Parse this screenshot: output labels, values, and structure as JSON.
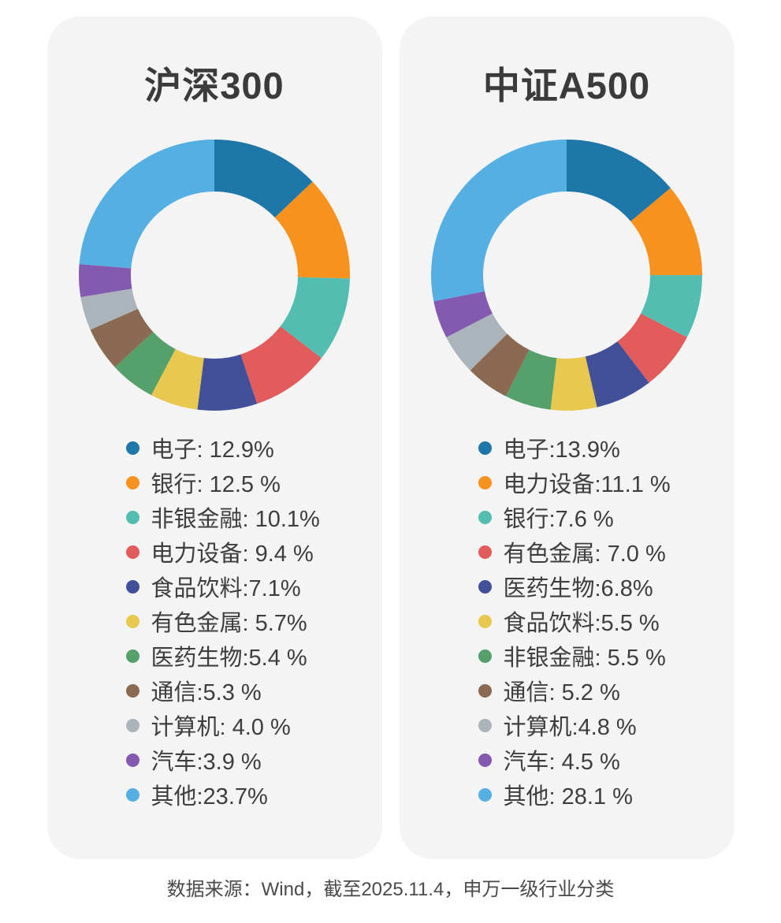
{
  "page": {
    "background": "#ffffff",
    "card_background": "#f4f4f5",
    "footer": "数据来源：Wind，截至2025.11.4，申万一级行业分类"
  },
  "palette": [
    "#1f76a8",
    "#f7921e",
    "#54bdb2",
    "#e25c5c",
    "#424f99",
    "#e8c84f",
    "#55a06b",
    "#8a6a52",
    "#abb4bb",
    "#8459b0",
    "#55afe2"
  ],
  "chart_data": [
    {
      "type": "pie",
      "subtype": "donut",
      "title": "沪深300",
      "start_angle_deg": -90,
      "direction": "clockwise",
      "legend_position": "below",
      "items": [
        {
          "label": "电子",
          "value": 12.9,
          "text": "电子: 12.9%"
        },
        {
          "label": "银行",
          "value": 12.5,
          "text": "银行: 12.5 %"
        },
        {
          "label": "非银金融",
          "value": 10.1,
          "text": "非银金融: 10.1%"
        },
        {
          "label": "电力设备",
          "value": 9.4,
          "text": "电力设备: 9.4 %"
        },
        {
          "label": "食品饮料",
          "value": 7.1,
          "text": "食品饮料:7.1%"
        },
        {
          "label": "有色金属",
          "value": 5.7,
          "text": "有色金属: 5.7%"
        },
        {
          "label": "医药生物",
          "value": 5.4,
          "text": "医药生物:5.4 %"
        },
        {
          "label": "通信",
          "value": 5.3,
          "text": "通信:5.3 %"
        },
        {
          "label": "计算机",
          "value": 4.0,
          "text": "计算机: 4.0 %"
        },
        {
          "label": "汽车",
          "value": 3.9,
          "text": "汽车:3.9 %"
        },
        {
          "label": "其他",
          "value": 23.7,
          "text": "其他:23.7%"
        }
      ]
    },
    {
      "type": "pie",
      "subtype": "donut",
      "title": "中证A500",
      "start_angle_deg": -90,
      "direction": "clockwise",
      "legend_position": "below",
      "items": [
        {
          "label": "电子",
          "value": 13.9,
          "text": "电子:13.9%"
        },
        {
          "label": "电力设备",
          "value": 11.1,
          "text": "电力设备:11.1 %"
        },
        {
          "label": "银行",
          "value": 7.6,
          "text": "银行:7.6 %"
        },
        {
          "label": "有色金属",
          "value": 7.0,
          "text": "有色金属: 7.0 %"
        },
        {
          "label": "医药生物",
          "value": 6.8,
          "text": "医药生物:6.8%"
        },
        {
          "label": "食品饮料",
          "value": 5.5,
          "text": "食品饮料:5.5 %"
        },
        {
          "label": "非银金融",
          "value": 5.5,
          "text": "非银金融: 5.5 %"
        },
        {
          "label": "通信",
          "value": 5.2,
          "text": "通信: 5.2 %"
        },
        {
          "label": "计算机",
          "value": 4.8,
          "text": "计算机:4.8 %"
        },
        {
          "label": "汽车",
          "value": 4.5,
          "text": "汽车: 4.5 %"
        },
        {
          "label": "其他",
          "value": 28.1,
          "text": "其他: 28.1 %"
        }
      ]
    }
  ]
}
